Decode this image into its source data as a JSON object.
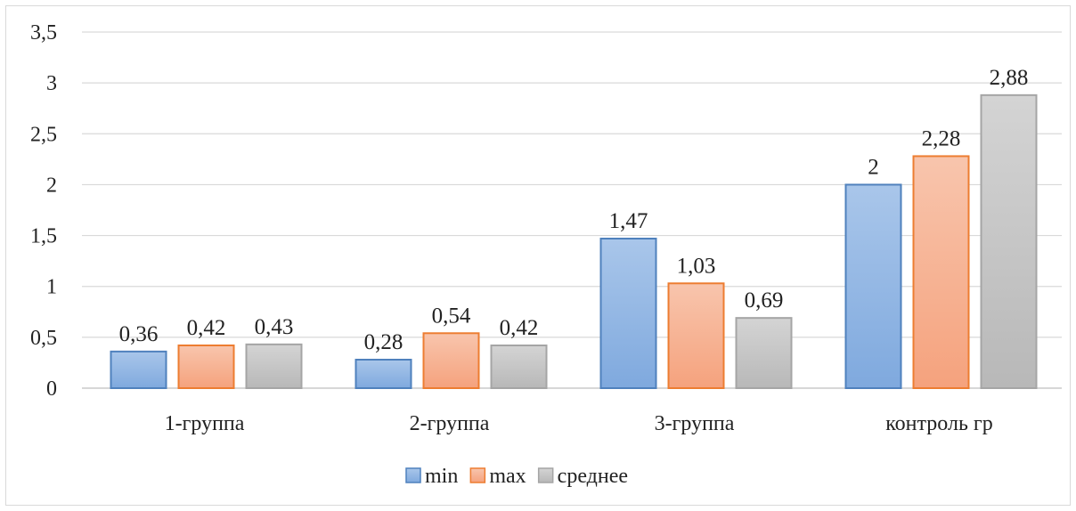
{
  "chart_data": {
    "type": "bar",
    "categories": [
      "1-группа",
      "2-группа",
      "3-группа",
      "контроль гр"
    ],
    "series": [
      {
        "name": "min",
        "values": [
          0.36,
          0.28,
          1.47,
          2
        ],
        "labels": [
          "0,36",
          "0,28",
          "1,47",
          "2"
        ],
        "fill_top": "#a9c6ea",
        "fill_bottom": "#7fa9de",
        "stroke": "#4f81bd"
      },
      {
        "name": "max",
        "values": [
          0.42,
          0.54,
          1.03,
          2.28
        ],
        "labels": [
          "0,42",
          "0,54",
          "1,03",
          "2,28"
        ],
        "fill_top": "#f8c5ad",
        "fill_bottom": "#f5a27d",
        "stroke": "#ed7d31"
      },
      {
        "name": "среднее",
        "values": [
          0.43,
          0.42,
          0.69,
          2.88
        ],
        "labels": [
          "0,43",
          "0,42",
          "0,69",
          "2,88"
        ],
        "fill_top": "#d4d4d4",
        "fill_bottom": "#b8b8b8",
        "stroke": "#a5a5a5"
      }
    ],
    "ylim": [
      0,
      3.5
    ],
    "yticks": [
      {
        "value": 0,
        "label": "0"
      },
      {
        "value": 0.5,
        "label": "0,5"
      },
      {
        "value": 1,
        "label": "1"
      },
      {
        "value": 1.5,
        "label": "1,5"
      },
      {
        "value": 2,
        "label": "2"
      },
      {
        "value": 2.5,
        "label": "2,5"
      },
      {
        "value": 3,
        "label": "3"
      },
      {
        "value": 3.5,
        "label": "3,5"
      }
    ],
    "grid": true,
    "legend_position": "bottom",
    "gridline_color": "#d9d9d9",
    "axis_color": "#bfbfbf"
  }
}
